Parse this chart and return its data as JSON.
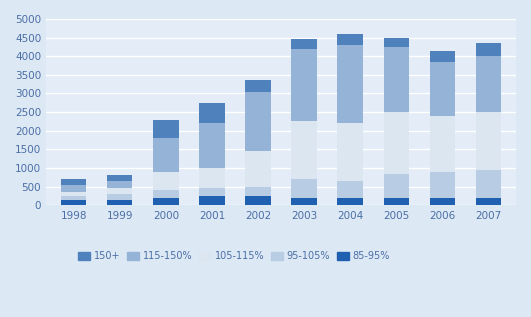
{
  "years": [
    "1998",
    "1999",
    "2000",
    "2001",
    "2002",
    "2003",
    "2004",
    "2005",
    "2006",
    "2007"
  ],
  "segments": {
    "85-95%": [
      150,
      150,
      200,
      250,
      250,
      200,
      200,
      200,
      200,
      200
    ],
    "95-105%": [
      100,
      150,
      200,
      200,
      250,
      500,
      450,
      650,
      700,
      750
    ],
    "105-115%": [
      100,
      150,
      500,
      550,
      950,
      1550,
      1550,
      1650,
      1500,
      1550
    ],
    "115-150%": [
      200,
      200,
      900,
      1200,
      1600,
      1950,
      2100,
      1750,
      1450,
      1500
    ],
    "150+": [
      150,
      150,
      500,
      550,
      300,
      250,
      300,
      250,
      300,
      350
    ]
  },
  "colors": {
    "85-95%": "#2060b0",
    "95-105%": "#b8cce4",
    "105-115%": "#dce6f1",
    "115-150%": "#95b3d7",
    "150+": "#4f81bd"
  },
  "ylim": [
    0,
    5000
  ],
  "yticks": [
    0,
    500,
    1000,
    1500,
    2000,
    2500,
    3000,
    3500,
    4000,
    4500,
    5000
  ],
  "background_color": "#dde8f5",
  "plot_bg_color": "#e4edf7",
  "grid_color": "#ffffff",
  "bar_width": 0.55,
  "legend_order": [
    "150+",
    "115-150%",
    "105-115%",
    "95-105%",
    "85-95%"
  ]
}
